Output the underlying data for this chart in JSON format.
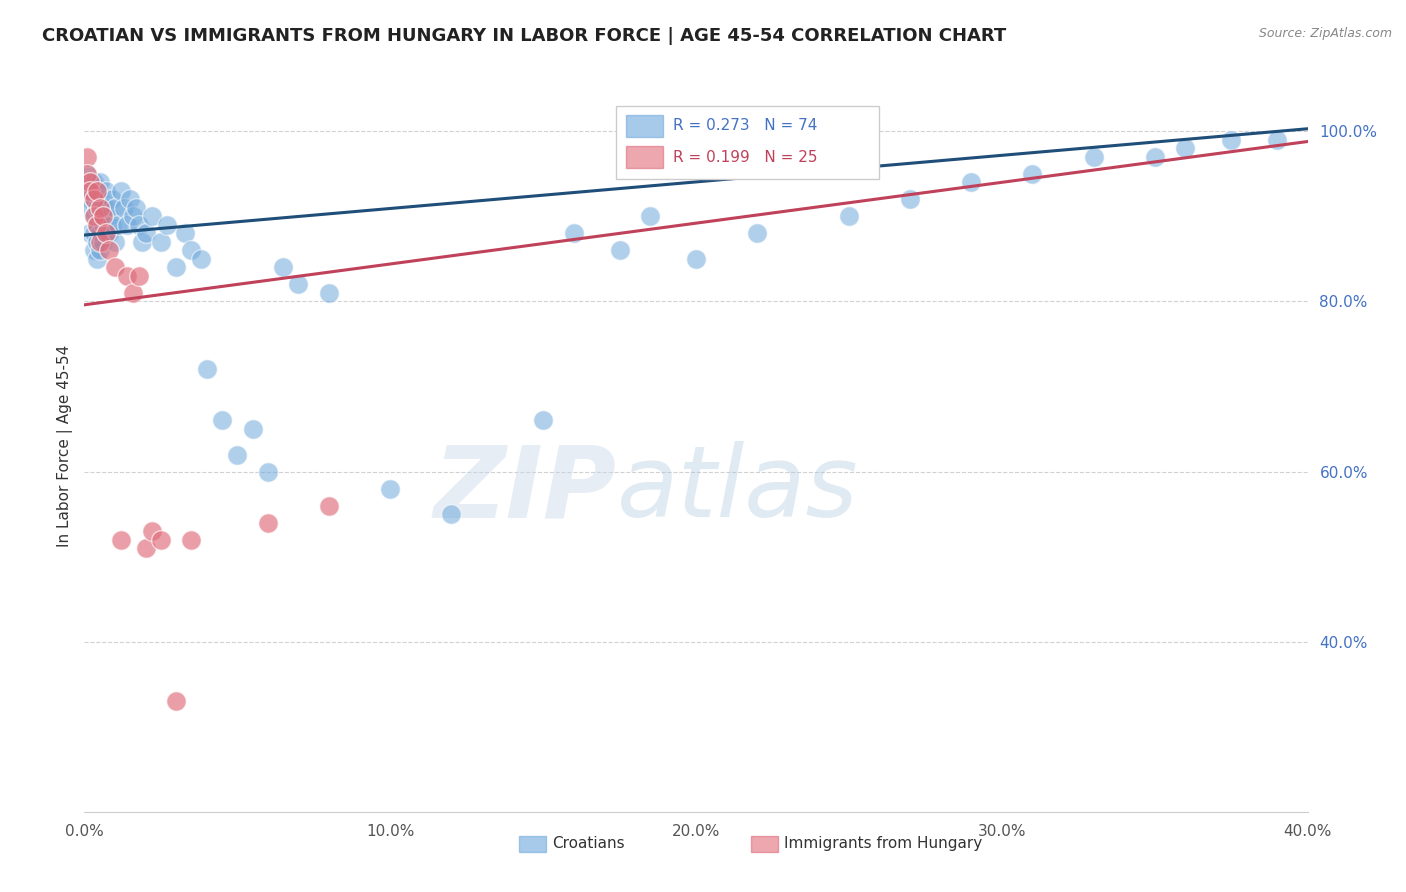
{
  "title": "CROATIAN VS IMMIGRANTS FROM HUNGARY IN LABOR FORCE | AGE 45-54 CORRELATION CHART",
  "source": "Source: ZipAtlas.com",
  "ylabel": "In Labor Force | Age 45-54",
  "watermark_zip": "ZIP",
  "watermark_atlas": "atlas",
  "xmin": 0.0,
  "xmax": 0.4,
  "ymin": 0.2,
  "ymax": 1.06,
  "yticks": [
    0.4,
    0.6,
    0.8,
    1.0
  ],
  "ytick_labels": [
    "40.0%",
    "60.0%",
    "80.0%",
    "100.0%"
  ],
  "xticks": [
    0.0,
    0.05,
    0.1,
    0.15,
    0.2,
    0.25,
    0.3,
    0.35,
    0.4
  ],
  "xtick_labels": [
    "0.0%",
    "",
    "10.0%",
    "",
    "20.0%",
    "",
    "30.0%",
    "",
    "40.0%"
  ],
  "blue_R": 0.273,
  "blue_N": 74,
  "pink_R": 0.199,
  "pink_N": 25,
  "blue_color": "#6fa8dc",
  "pink_color": "#e06c7a",
  "blue_line_color": "#1f4e79",
  "pink_line_color": "#c0415a",
  "blue_line_y0": 0.878,
  "blue_line_y1": 1.003,
  "pink_line_y0": 0.796,
  "pink_line_y1": 0.988,
  "legend_label_blue": "Croatians",
  "legend_label_pink": "Immigrants from Hungary",
  "blue_x": [
    0.001,
    0.001,
    0.002,
    0.002,
    0.002,
    0.003,
    0.003,
    0.003,
    0.003,
    0.003,
    0.004,
    0.004,
    0.004,
    0.004,
    0.004,
    0.005,
    0.005,
    0.005,
    0.005,
    0.005,
    0.006,
    0.006,
    0.006,
    0.007,
    0.007,
    0.007,
    0.008,
    0.008,
    0.009,
    0.009,
    0.01,
    0.01,
    0.011,
    0.012,
    0.013,
    0.014,
    0.015,
    0.016,
    0.017,
    0.018,
    0.019,
    0.02,
    0.022,
    0.025,
    0.027,
    0.03,
    0.033,
    0.035,
    0.038,
    0.04,
    0.045,
    0.05,
    0.055,
    0.06,
    0.065,
    0.07,
    0.08,
    0.1,
    0.12,
    0.15,
    0.16,
    0.175,
    0.185,
    0.2,
    0.22,
    0.25,
    0.27,
    0.29,
    0.31,
    0.33,
    0.35,
    0.36,
    0.375,
    0.39
  ],
  "blue_y": [
    0.95,
    0.93,
    0.92,
    0.91,
    0.88,
    0.94,
    0.92,
    0.9,
    0.88,
    0.86,
    0.93,
    0.91,
    0.89,
    0.87,
    0.85,
    0.94,
    0.92,
    0.9,
    0.88,
    0.86,
    0.91,
    0.89,
    0.87,
    0.93,
    0.91,
    0.88,
    0.9,
    0.88,
    0.92,
    0.89,
    0.87,
    0.91,
    0.89,
    0.93,
    0.91,
    0.89,
    0.92,
    0.9,
    0.91,
    0.89,
    0.87,
    0.88,
    0.9,
    0.87,
    0.89,
    0.84,
    0.88,
    0.86,
    0.85,
    0.72,
    0.66,
    0.62,
    0.65,
    0.6,
    0.84,
    0.82,
    0.81,
    0.58,
    0.55,
    0.66,
    0.88,
    0.86,
    0.9,
    0.85,
    0.88,
    0.9,
    0.92,
    0.94,
    0.95,
    0.97,
    0.97,
    0.98,
    0.99,
    0.99
  ],
  "pink_x": [
    0.001,
    0.001,
    0.002,
    0.002,
    0.003,
    0.003,
    0.004,
    0.004,
    0.005,
    0.005,
    0.006,
    0.007,
    0.008,
    0.01,
    0.012,
    0.014,
    0.016,
    0.018,
    0.02,
    0.022,
    0.025,
    0.03,
    0.035,
    0.06,
    0.08
  ],
  "pink_y": [
    0.97,
    0.95,
    0.94,
    0.93,
    0.92,
    0.9,
    0.93,
    0.89,
    0.91,
    0.87,
    0.9,
    0.88,
    0.86,
    0.84,
    0.52,
    0.83,
    0.81,
    0.83,
    0.51,
    0.53,
    0.52,
    0.33,
    0.52,
    0.54,
    0.56
  ]
}
